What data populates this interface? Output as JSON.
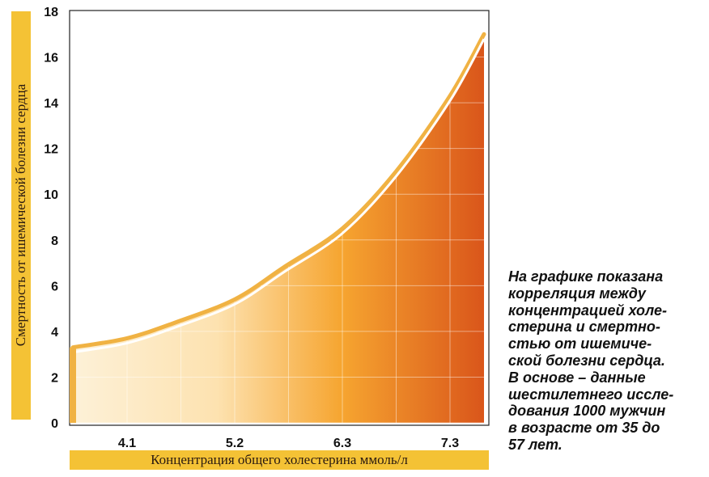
{
  "chart_data": {
    "type": "area",
    "xlabel": "Концентрация общего холестерина ммоль/л",
    "ylabel": "Смертность от ишемической болезни сердца",
    "x_ticks": [
      "4.1",
      "5.2",
      "6.3",
      "7.3"
    ],
    "y_ticks": [
      "0",
      "2",
      "4",
      "6",
      "8",
      "10",
      "12",
      "14",
      "16",
      "18"
    ],
    "ylim": [
      0,
      18
    ],
    "grid": true,
    "series": [
      {
        "x": [
          3.6,
          4.1,
          4.6,
          5.2,
          5.7,
          6.3,
          6.8,
          7.3,
          7.6
        ],
        "y": [
          3.3,
          3.7,
          4.4,
          5.4,
          6.8,
          8.5,
          11.0,
          14.3,
          17.0
        ]
      }
    ]
  },
  "caption": {
    "lines": [
      "На графике показана",
      "корреляция между",
      "концентрацией холе-",
      "стерина и смертно-",
      "стью от ишемиче-",
      "ской болезни сердца.",
      "В основе – данные",
      "шестилетнего иссле-",
      "дования 1000 мужчин",
      "в возрасте от 35 до",
      "57 лет."
    ]
  },
  "colors": {
    "band": "#f4c235",
    "fill_light": "#fde6b6",
    "fill_mid": "#f6a52e",
    "fill_dark": "#d9541a",
    "edge": "#f0b243"
  }
}
